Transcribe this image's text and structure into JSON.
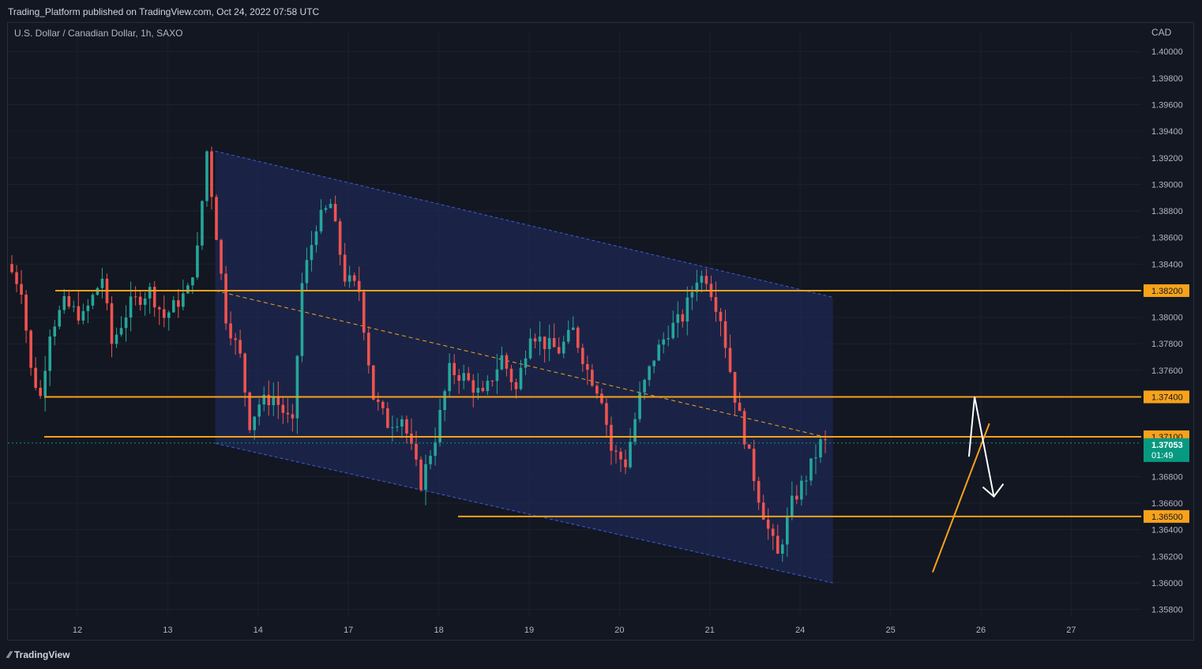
{
  "header": {
    "publisher_text": "Trading_Platform published on TradingView.com, Oct 24, 2022 07:58 UTC",
    "symbol_text": "U.S. Dollar / Canadian Dollar, 1h, SAXO",
    "currency": "CAD"
  },
  "footer": {
    "logo_text": "TradingView",
    "logo_icon": "tradingview-logo-icon"
  },
  "colors": {
    "background": "#131722",
    "up": "#26a69a",
    "down": "#ef5350",
    "level_line": "#f7a21b",
    "channel_fill": "#1e2a5a",
    "price_tag": "#089981",
    "arrow": "#ffffff"
  },
  "chart_data": {
    "type": "candlestick",
    "title": "U.S. Dollar / Canadian Dollar, 1h, SAXO",
    "y_axis": {
      "ticks": [
        "1.40000",
        "1.39800",
        "1.39600",
        "1.39400",
        "1.39200",
        "1.39000",
        "1.38800",
        "1.38600",
        "1.38400",
        "1.38000",
        "1.37800",
        "1.37600",
        "1.36800",
        "1.36600",
        "1.36400",
        "1.36200",
        "1.36000",
        "1.35800"
      ],
      "range": [
        1.3575,
        1.4015
      ]
    },
    "x_axis": {
      "ticks": [
        "12",
        "13",
        "14",
        "17",
        "18",
        "19",
        "20",
        "21",
        "24",
        "25",
        "26",
        "27"
      ]
    },
    "levels": [
      {
        "label": "1.38200",
        "value": 1.382
      },
      {
        "label": "1.37400",
        "value": 1.374
      },
      {
        "label": "1.37100",
        "value": 1.371
      },
      {
        "label": "1.36500",
        "value": 1.365
      }
    ],
    "current_price": {
      "label": "1.37053",
      "countdown": "01:49",
      "value": 1.37053
    },
    "price_path": [
      [
        0,
        1.384
      ],
      [
        3,
        1.3822
      ],
      [
        5,
        1.376
      ],
      [
        7,
        1.374
      ],
      [
        9,
        1.379
      ],
      [
        12,
        1.381
      ],
      [
        16,
        1.38
      ],
      [
        20,
        1.383
      ],
      [
        22,
        1.378
      ],
      [
        26,
        1.381
      ],
      [
        30,
        1.382
      ],
      [
        33,
        1.38
      ],
      [
        38,
        1.382
      ],
      [
        40,
        1.385
      ],
      [
        42,
        1.3925
      ],
      [
        46,
        1.38
      ],
      [
        49,
        1.377
      ],
      [
        51,
        1.372
      ],
      [
        53,
        1.3735
      ],
      [
        56,
        1.374
      ],
      [
        60,
        1.3718
      ],
      [
        62,
        1.3825
      ],
      [
        65,
        1.387
      ],
      [
        68,
        1.3885
      ],
      [
        71,
        1.383
      ],
      [
        74,
        1.382
      ],
      [
        77,
        1.374
      ],
      [
        80,
        1.372
      ],
      [
        83,
        1.3725
      ],
      [
        85,
        1.37
      ],
      [
        87,
        1.3675
      ],
      [
        90,
        1.371
      ],
      [
        93,
        1.376
      ],
      [
        96,
        1.3755
      ],
      [
        100,
        1.374
      ],
      [
        104,
        1.377
      ],
      [
        107,
        1.3745
      ],
      [
        110,
        1.379
      ],
      [
        113,
        1.378
      ],
      [
        116,
        1.3775
      ],
      [
        119,
        1.379
      ],
      [
        122,
        1.376
      ],
      [
        125,
        1.374
      ],
      [
        127,
        1.37
      ],
      [
        130,
        1.369
      ],
      [
        133,
        1.374
      ],
      [
        136,
        1.377
      ],
      [
        139,
        1.379
      ],
      [
        142,
        1.38
      ],
      [
        145,
        1.383
      ],
      [
        147,
        1.383
      ],
      [
        150,
        1.38
      ],
      [
        153,
        1.374
      ],
      [
        156,
        1.3695
      ],
      [
        158,
        1.3665
      ],
      [
        160,
        1.364
      ],
      [
        162,
        1.362
      ],
      [
        165,
        1.366
      ],
      [
        168,
        1.368
      ],
      [
        171,
        1.3705
      ]
    ],
    "annotations": {
      "channel_top": [
        [
          1.3925,
          0.23
        ],
        [
          1.3815,
          0.88
        ]
      ],
      "channel_bottom": [
        [
          1.3705,
          0.23
        ],
        [
          1.36,
          0.88
        ]
      ],
      "channel_midline": [
        [
          1.382,
          0.23
        ],
        [
          1.371,
          0.88
        ]
      ],
      "trendline": [
        [
          1.3608,
          0.816
        ],
        [
          1.372,
          0.866
        ]
      ],
      "forecast_arrow": [
        [
          1.3695,
          0.848
        ],
        [
          1.374,
          0.853
        ],
        [
          1.3665,
          0.87
        ]
      ]
    }
  }
}
